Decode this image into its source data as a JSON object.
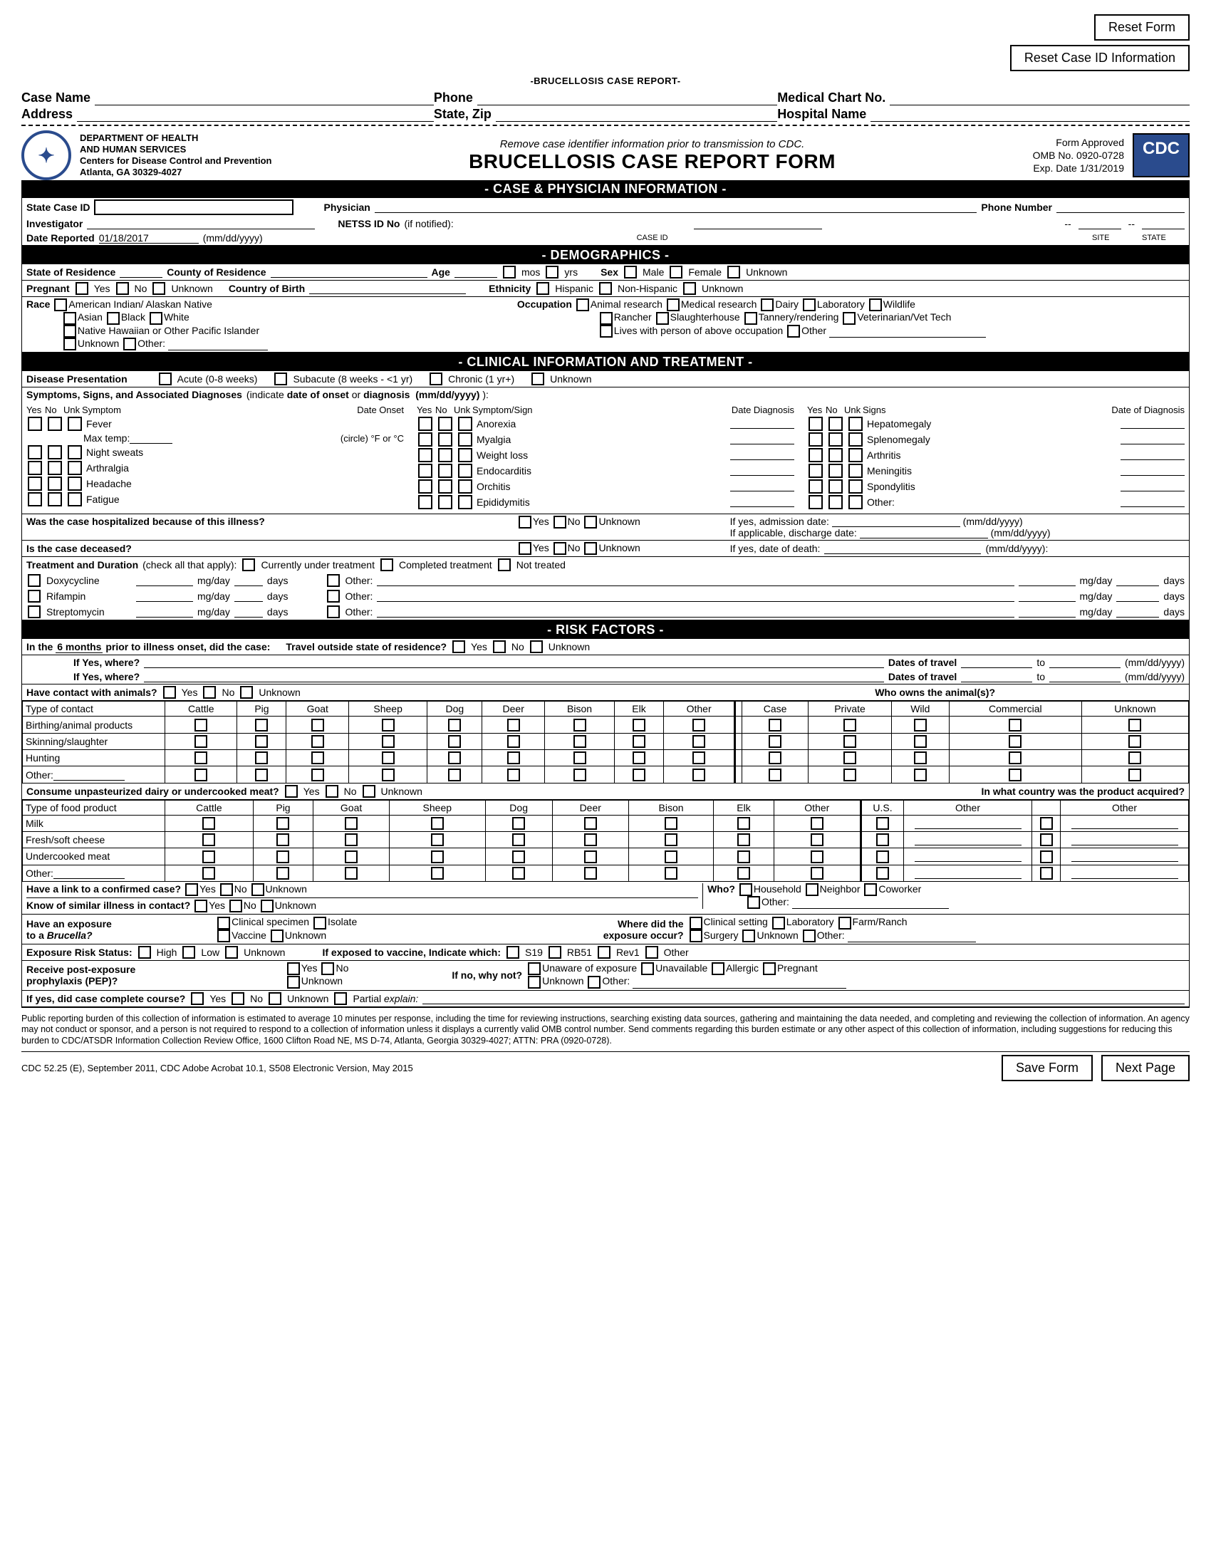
{
  "buttons": {
    "reset_form": "Reset Form",
    "reset_case_id": "Reset Case ID Information",
    "save_form": "Save Form",
    "next_page": "Next Page"
  },
  "header": {
    "subtitle": "-BRUCELLOSIS CASE REPORT-",
    "case_name": "Case Name",
    "phone": "Phone",
    "medical_chart": "Medical Chart No.",
    "address": "Address",
    "state_zip": "State, Zip",
    "hospital_name": "Hospital Name"
  },
  "agency": {
    "l1": "DEPARTMENT OF HEALTH",
    "l2": "AND HUMAN SERVICES",
    "l3": "Centers for Disease Control and Prevention",
    "l4": "Atlanta, GA 30329-4027",
    "remove": "Remove case identifier information prior to transmission to CDC.",
    "title": "BRUCELLOSIS CASE REPORT FORM",
    "approved": "Form Approved",
    "omb": "OMB No. 0920-0728",
    "exp": "Exp. Date 1/31/2019",
    "cdc": "CDC"
  },
  "s1": {
    "bar": "- CASE & PHYSICIAN INFORMATION -",
    "state_case_id": "State Case ID",
    "physician": "Physician",
    "phone_number": "Phone Number",
    "investigator": "Investigator",
    "date_reported": "Date Reported",
    "date_val": "01/18/2017",
    "date_fmt": "(mm/dd/yyyy)",
    "netss": "NETSS ID No",
    "if_notified": "(if notified):",
    "case_id": "CASE ID",
    "site": "SITE",
    "state": "STATE"
  },
  "s2": {
    "bar": "- DEMOGRAPHICS -",
    "state_res": "State of Residence",
    "county_res": "County of Residence",
    "age": "Age",
    "mos": "mos",
    "yrs": "yrs",
    "sex": "Sex",
    "male": "Male",
    "female": "Female",
    "unknown": "Unknown",
    "pregnant": "Pregnant",
    "yes": "Yes",
    "no": "No",
    "cob": "Country of Birth",
    "ethnicity": "Ethnicity",
    "hispanic": "Hispanic",
    "nonhispanic": "Non-Hispanic",
    "race": "Race",
    "r1": "American Indian/ Alaskan Native",
    "r2": "Asian",
    "r3": "Black",
    "r4": "White",
    "r5": "Native Hawaiian or Other Pacific Islander",
    "r6": "Unknown",
    "r7": "Other:",
    "occupation": "Occupation",
    "o1": "Animal research",
    "o2": "Medical research",
    "o3": "Dairy",
    "o4": "Laboratory",
    "o5": "Wildlife",
    "o6": "Rancher",
    "o7": "Slaughterhouse",
    "o8": "Tannery/rendering",
    "o9": "Veterinarian/Vet Tech",
    "o10": "Lives with person of above occupation",
    "o11": "Other"
  },
  "s3": {
    "bar": "- CLINICAL INFORMATION AND TREATMENT -",
    "disease_presentation": "Disease Presentation",
    "dp1": "Acute (0-8 weeks)",
    "dp2": "Subacute (8 weeks - <1 yr)",
    "dp3": "Chronic (1 yr+)",
    "dp4": "Unknown",
    "sym_hdr": "Symptoms, Signs, and Associated Diagnoses (indicate date of onset or diagnosis  (mm/dd/yyyy) ):",
    "yes": "Yes",
    "no": "No",
    "unk": "Unk",
    "symptom": "Symptom",
    "date_onset": "Date Onset",
    "symsign": "Symptom/Sign",
    "date_diag": "Date Diagnosis",
    "signs": "Signs",
    "date_diag2": "Date of Diagnosis",
    "col1": [
      "Fever",
      "Night sweats",
      "Arthralgia",
      "Headache",
      "Fatigue"
    ],
    "maxtemp": "Max temp:",
    "circle": "(circle) °F or °C",
    "col2": [
      "Anorexia",
      "Myalgia",
      "Weight loss",
      "Endocarditis",
      "Orchitis",
      "Epididymitis"
    ],
    "col3": [
      "Hepatomegaly",
      "Splenomegaly",
      "Arthritis",
      "Meningitis",
      "Spondylitis",
      "Other:"
    ],
    "hosp_q": "Was the case hospitalized because of this illness?",
    "admission": "If yes, admission date:",
    "discharge": "If applicable, discharge date:",
    "mmddyyyy": "(mm/dd/yyyy)",
    "deceased": "Is the case deceased?",
    "death_date": "If yes, date of death:",
    "mmddyyyy2": "(mm/dd/yyyy):",
    "treatment": "Treatment and Duration",
    "check_all": "(check all that apply):",
    "t1": "Currently under treatment",
    "t2": "Completed treatment",
    "t3": "Not treated",
    "drug1": "Doxycycline",
    "drug2": "Rifampin",
    "drug3": "Streptomycin",
    "other": "Other:",
    "mgday": "mg/day",
    "days": "days"
  },
  "s4": {
    "bar": "- RISK FACTORS -",
    "q1a": "In the ",
    "q1b": "6 months",
    "q1c": " prior to illness onset, did the case:",
    "travel": "Travel outside state of residence?",
    "yes": "Yes",
    "no": "No",
    "unknown": "Unknown",
    "where": "If Yes, where?",
    "dates_travel": "Dates of travel",
    "to": "to",
    "mmddyyyy": "(mm/dd/yyyy)",
    "contact_animals": "Have contact with animals?",
    "who_owns": "Who owns the animal(s)?",
    "type_contact": "Type of contact",
    "animals": [
      "Cattle",
      "Pig",
      "Goat",
      "Sheep",
      "Dog",
      "Deer",
      "Bison",
      "Elk",
      "Other"
    ],
    "owners": [
      "Case",
      "Private",
      "Wild",
      "Commercial",
      "Unknown"
    ],
    "contact_rows": [
      "Birthing/animal products",
      "Skinning/slaughter",
      "Hunting",
      "Other:"
    ],
    "consume": "Consume unpasteurized dairy or undercooked meat?",
    "country_acquired": "In what country was the product acquired?",
    "type_food": "Type of food product",
    "food_rows": [
      "Milk",
      "Fresh/soft cheese",
      "Undercooked meat",
      "Other:"
    ],
    "country_cols": [
      "U.S.",
      "Other",
      "Other"
    ],
    "link_confirmed": "Have a link to a confirmed case?",
    "who": "Who?",
    "household": "Household",
    "neighbor": "Neighbor",
    "coworker": "Coworker",
    "other": "Other:",
    "similar_illness": "Know of similar illness in contact?",
    "exposure_brucella1": "Have an exposure",
    "exposure_brucella2": "to a Brucella?",
    "brucella_italic": "Brucella?",
    "clinical_specimen": "Clinical specimen",
    "isolate": "Isolate",
    "vaccine": "Vaccine",
    "where_occur1": "Where did the",
    "where_occur2": "exposure occur?",
    "clinical_setting": "Clinical setting",
    "laboratory": "Laboratory",
    "farm": "Farm/Ranch",
    "surgery": "Surgery",
    "risk_status": "Exposure Risk Status:",
    "high": "High",
    "low": "Low",
    "if_vaccine": "If exposed to vaccine, Indicate which:",
    "s19": "S19",
    "rb51": "RB51",
    "rev1": "Rev1",
    "pep1": "Receive post-exposure",
    "pep2": "prophylaxis (PEP)?",
    "why_not": "If no, why not?",
    "unaware": "Unaware of exposure",
    "unavailable": "Unavailable",
    "allergic": "Allergic",
    "pregnant": "Pregnant",
    "complete_course": "If yes, did case complete course?",
    "partial": "Partial explain:",
    "partial_word": "explain:"
  },
  "disclaimer": "Public reporting burden of this collection of information is estimated to average 10 minutes per response, including the time for reviewing instructions, searching existing data sources, gathering and maintaining the data needed, and completing and reviewing the collection of information. An agency may not conduct or sponsor, and a person is not required to respond to a collection of information unless it displays a currently valid OMB control number. Send comments regarding this burden estimate or any other aspect of this collection of information, including suggestions for reducing this burden to CDC/ATSDR Information Collection Review Office, 1600 Clifton Road NE, MS D-74, Atlanta, Georgia 30329-4027; ATTN: PRA (0920-0728).",
  "footer": "CDC 52.25 (E), September 2011, CDC Adobe Acrobat 10.1, S508 Electronic Version, May 2015"
}
